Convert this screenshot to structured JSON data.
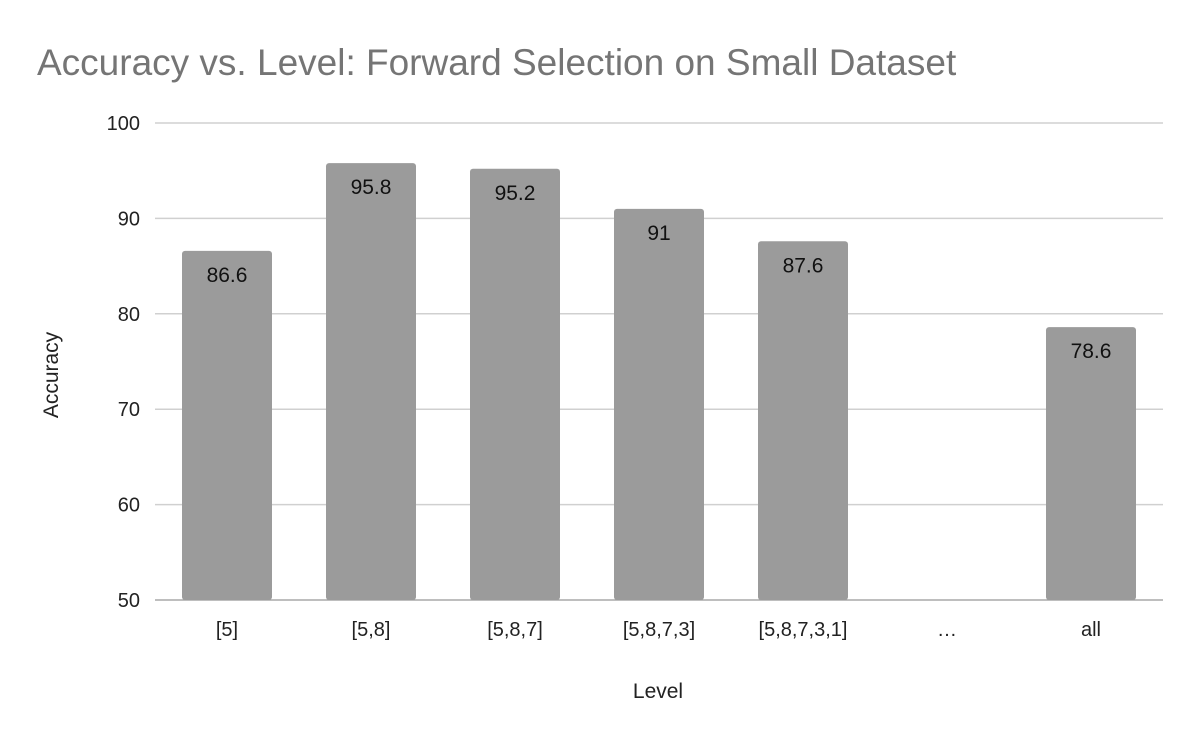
{
  "chart_data": {
    "type": "bar",
    "title": "Accuracy vs. Level: Forward Selection on Small Dataset",
    "xlabel": "Level",
    "ylabel": "Accuracy",
    "categories": [
      "[5]",
      "[5,8]",
      "[5,8,7]",
      "[5,8,7,3]",
      "[5,8,7,3,1]",
      "…",
      "all"
    ],
    "values": [
      86.6,
      95.8,
      95.2,
      91,
      87.6,
      null,
      78.6
    ],
    "data_labels": [
      "86.6",
      "95.8",
      "95.2",
      "91",
      "87.6",
      "",
      "78.6"
    ],
    "ylim": [
      50,
      100
    ],
    "yticks": [
      50,
      60,
      70,
      80,
      90,
      100
    ],
    "grid": true,
    "legend": "none",
    "bar_color": "#9b9b9b"
  }
}
